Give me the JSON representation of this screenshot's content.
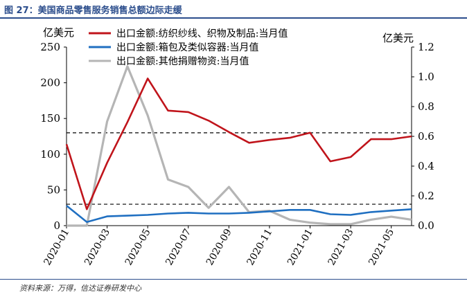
{
  "figure": {
    "title": "图 27：美国商品零售服务销售总额边际走缓",
    "source": "资料来源：万得，信达证券研发中心"
  },
  "colors": {
    "red": "#c0141b",
    "blue": "#1f6fc1",
    "gray": "#b5b5b5",
    "accent": "#2b4d8c"
  },
  "chart_data": {
    "type": "line",
    "left_unit": "亿美元",
    "right_unit": "亿美元",
    "ylim_left": [
      0,
      250
    ],
    "ylim_right": [
      0,
      1.2
    ],
    "left_ticks": [
      "0",
      "50",
      "100",
      "150",
      "200",
      "250"
    ],
    "right_ticks": [
      "0.0",
      "0.2",
      "0.4",
      "0.6",
      "0.8",
      "1.0",
      "1.2"
    ],
    "x": [
      "2020-01",
      "2020-02",
      "2020-03",
      "2020-04",
      "2020-05",
      "2020-06",
      "2020-07",
      "2020-08",
      "2020-09",
      "2020-10",
      "2020-11",
      "2020-12",
      "2021-01",
      "2021-02",
      "2021-03",
      "2021-04",
      "2021-05",
      "2021-06"
    ],
    "x_tick_labels": [
      "2020-01",
      "2020-03",
      "2020-05",
      "2020-07",
      "2020-09",
      "2020-11",
      "2021-01",
      "2021-03",
      "2021-05"
    ],
    "grid": false,
    "legend_position": "top",
    "series": [
      {
        "name": "出口金额:纺织纱线、织物及制品:当月值",
        "axis": "left",
        "color": "#c0141b",
        "values": [
          114,
          23,
          88,
          145,
          206,
          161,
          159,
          147,
          131,
          116,
          120,
          123,
          130,
          90,
          96,
          121,
          121,
          125
        ]
      },
      {
        "name": "出口金额:箱包及类似容器:当月值",
        "axis": "left",
        "color": "#1f6fc1",
        "values": [
          28,
          5,
          13,
          14,
          15,
          17,
          18,
          17,
          17,
          18,
          20,
          22,
          22,
          16,
          15,
          19,
          21,
          23
        ]
      },
      {
        "name": "出口金额:其他捐赠物资:当月值",
        "axis": "right",
        "color": "#b5b5b5",
        "values": [
          0.0,
          0.0,
          0.7,
          1.07,
          0.74,
          0.31,
          0.26,
          0.12,
          0.26,
          0.09,
          0.1,
          0.04,
          0.02,
          0.01,
          0.01,
          0.04,
          0.06,
          0.04
        ]
      }
    ],
    "reference_lines": [
      {
        "axis": "left",
        "value": 130,
        "style": "dashed"
      },
      {
        "axis": "left",
        "value": 30,
        "style": "dashed"
      }
    ]
  }
}
